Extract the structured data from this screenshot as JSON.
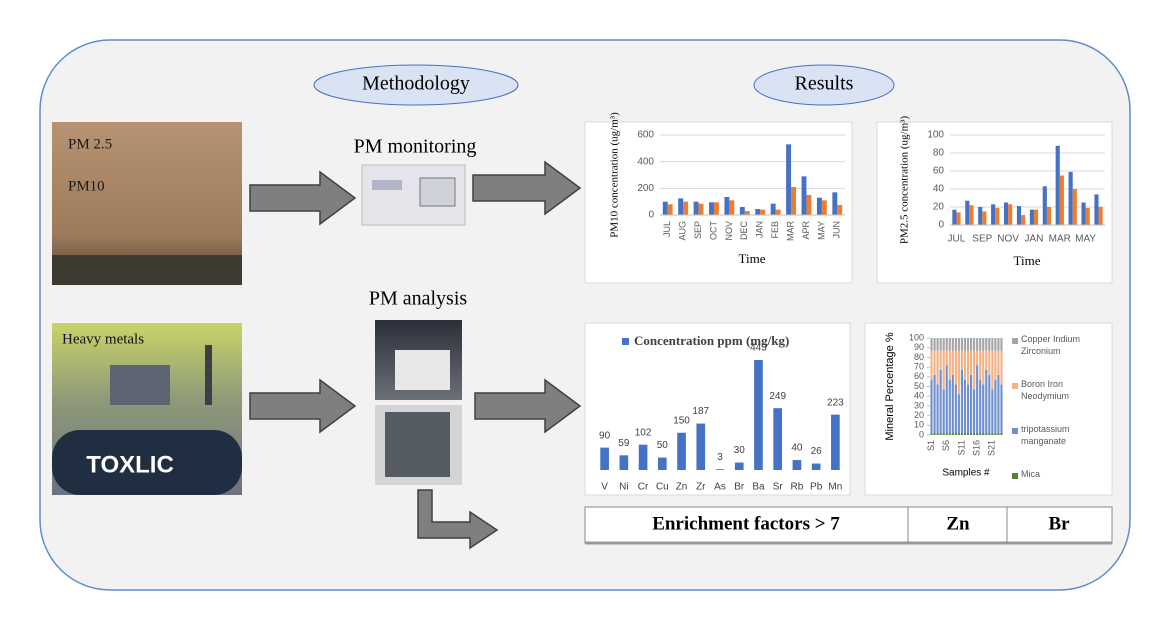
{
  "labels": {
    "methodology": "Methodology",
    "results": "Results",
    "pm_monitoring": "PM monitoring",
    "pm_analysis": "PM analysis"
  },
  "photo_texts": {
    "pm25": "PM 2.5",
    "pm10": "PM10",
    "heavy_metals": "Heavy metals",
    "toxic_sign": "TOXLIC"
  },
  "charts": [
    {
      "type": "bar",
      "y_label": "PM10 concentration (ug/m³)",
      "x_label": "Time",
      "categories": [
        "JUL",
        "AUG",
        "SEP",
        "OCT",
        "NOV",
        "DEC",
        "JAN",
        "FEB",
        "MAR",
        "APR",
        "MAY",
        "JUN"
      ],
      "series": [
        {
          "color": "#4472c4",
          "values": [
            100,
            125,
            100,
            95,
            135,
            60,
            45,
            85,
            530,
            290,
            130,
            170
          ]
        },
        {
          "color": "#ed7d31",
          "values": [
            80,
            100,
            85,
            95,
            110,
            30,
            40,
            40,
            210,
            150,
            110,
            75
          ]
        }
      ],
      "ylim": [
        0,
        600
      ],
      "yticks": [
        0,
        200,
        400,
        600
      ],
      "grid": true
    },
    {
      "type": "bar",
      "y_label": "PM2.5 concentration (ug/m³)",
      "x_label": "Time",
      "categories": [
        "JUL",
        null,
        "SEP",
        null,
        "NOV",
        null,
        "JAN",
        null,
        "MAR",
        null,
        "MAY",
        null
      ],
      "series": [
        {
          "color": "#4472c4",
          "values": [
            17,
            27,
            20,
            23,
            25,
            21,
            17,
            43,
            88,
            59,
            25,
            34
          ]
        },
        {
          "color": "#ed7d31",
          "values": [
            14,
            22,
            15,
            19,
            23,
            11,
            17,
            20,
            55,
            40,
            19,
            20
          ]
        }
      ],
      "ylim": [
        0,
        100
      ],
      "yticks": [
        0,
        20,
        40,
        60,
        80,
        100
      ],
      "grid": true
    },
    {
      "type": "bar_labeled",
      "categories": [
        "V",
        "Ni",
        "Cr",
        "Cu",
        "Zn",
        "Zr",
        "As",
        "Br",
        "Ba",
        "Sr",
        "Rb",
        "Pb",
        "Mn"
      ],
      "series": [
        {
          "name": "Concentration ppm (mg/kg)",
          "color": "#4472c4",
          "values": [
            90,
            59,
            102,
            50,
            150,
            187,
            3,
            30,
            443,
            249,
            40,
            26,
            223
          ]
        }
      ]
    },
    {
      "type": "stacked_bar",
      "y_label": "Mineral Percentage %",
      "x_label": "Samples #",
      "categories": [
        "S1",
        null,
        null,
        null,
        null,
        "S6",
        null,
        null,
        null,
        null,
        "S11",
        null,
        null,
        null,
        null,
        "S16",
        null,
        null,
        null,
        null,
        "S21",
        null,
        null,
        null
      ],
      "series": [
        {
          "name": "Mica",
          "color": "#548235",
          "values": [
            2,
            2,
            2,
            2,
            2,
            2,
            2,
            2,
            2,
            2,
            2,
            2,
            2,
            2,
            2,
            2,
            2,
            2,
            2,
            2,
            2,
            2,
            2,
            2
          ]
        },
        {
          "name": "tripotassium manganate",
          "color": "#6f8fce",
          "values": [
            55,
            60,
            50,
            65,
            45,
            70,
            55,
            60,
            50,
            40,
            65,
            55,
            50,
            60,
            45,
            70,
            55,
            50,
            65,
            60,
            45,
            55,
            60,
            50
          ]
        },
        {
          "name": "Boron Iron Neodymium",
          "color": "#f4b183",
          "values": [
            30,
            25,
            35,
            20,
            40,
            15,
            30,
            25,
            35,
            45,
            20,
            30,
            35,
            25,
            40,
            15,
            30,
            35,
            20,
            25,
            40,
            30,
            25,
            35
          ]
        },
        {
          "name": "Copper Indium Zirconium",
          "color": "#a5a5a5",
          "values": [
            13,
            13,
            13,
            13,
            13,
            13,
            13,
            13,
            13,
            13,
            13,
            13,
            13,
            13,
            13,
            13,
            13,
            13,
            13,
            13,
            13,
            13,
            13,
            13
          ]
        }
      ],
      "ylim": [
        0,
        100
      ],
      "yticks": [
        0,
        10,
        20,
        30,
        40,
        50,
        60,
        70,
        80,
        90,
        100
      ]
    }
  ],
  "table": {
    "rows": [
      [
        "Enrichment factors > 7",
        "Zn",
        "Br"
      ]
    ]
  }
}
